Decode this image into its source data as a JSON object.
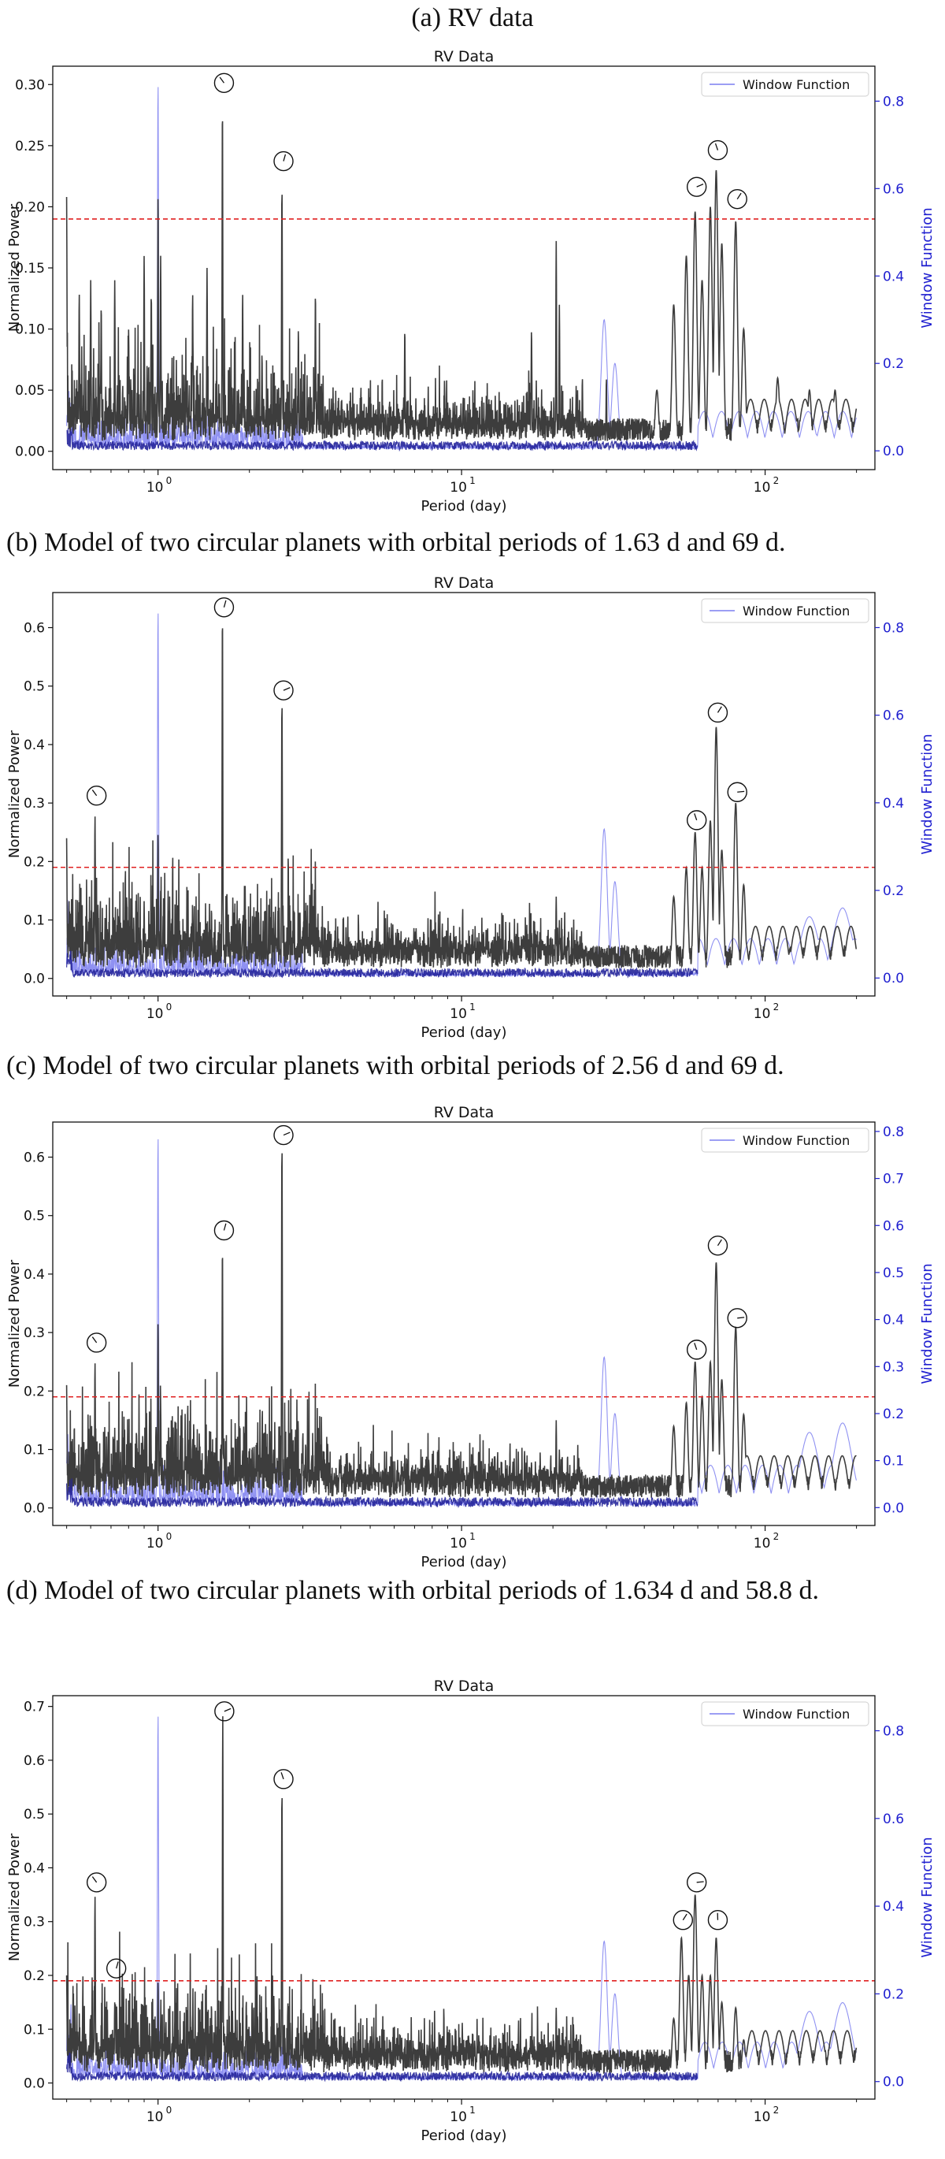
{
  "figure": {
    "captions": [
      "(a) RV data",
      "(b) Model of two circular planets with orbital periods of 1.63 d and 69 d.",
      "(c) Model of two circular planets with orbital periods of 2.56 d and 69 d.",
      "(d) Model of two circular planets with orbital periods of 1.634 d and 58.8 d."
    ]
  },
  "colors": {
    "power": "#3d3d3d",
    "window": "#7b7ef0",
    "window_dense": "#23239a",
    "threshold": "#e02020",
    "right_axis": "#1f1fd0"
  },
  "chart_data": [
    {
      "type": "line",
      "title": "RV Data",
      "xlabel": "Period (day)",
      "ylabel": "Normalized Power",
      "y2label": "Window Function",
      "legend": "Window Function",
      "legend_position": "top-right",
      "xscale": "log",
      "xlim": [
        0.45,
        230
      ],
      "ylim": [
        -0.015,
        0.315
      ],
      "y2lim": [
        -0.043,
        0.88
      ],
      "yticks": [
        "0.00",
        "0.05",
        "0.10",
        "0.15",
        "0.20",
        "0.25",
        "0.30"
      ],
      "y2ticks": [
        "0.0",
        "0.2",
        "0.4",
        "0.6",
        "0.8"
      ],
      "threshold": 0.19,
      "series": [
        {
          "name": "Normalized Power",
          "peaks": [
            [
              0.5,
              0.208
            ],
            [
              0.55,
              0.13
            ],
            [
              0.6,
              0.14
            ],
            [
              0.65,
              0.12
            ],
            [
              0.72,
              0.14
            ],
            [
              0.8,
              0.1
            ],
            [
              0.9,
              0.16
            ],
            [
              0.95,
              0.13
            ],
            [
              1.0,
              0.21
            ],
            [
              1.02,
              0.16
            ],
            [
              1.1,
              0.06
            ],
            [
              1.3,
              0.13
            ],
            [
              1.45,
              0.15
            ],
            [
              1.63,
              0.284
            ],
            [
              1.9,
              0.13
            ],
            [
              2.2,
              0.08
            ],
            [
              2.56,
              0.218
            ],
            [
              2.9,
              0.1
            ],
            [
              3.3,
              0.13
            ],
            [
              4.2,
              0.04
            ],
            [
              5.0,
              0.04
            ],
            [
              6.5,
              0.1
            ],
            [
              9.0,
              0.04
            ],
            [
              14.0,
              0.04
            ],
            [
              17.0,
              0.1
            ],
            [
              20.5,
              0.172
            ],
            [
              21.0,
              0.12
            ],
            [
              25.0,
              0.06
            ],
            [
              30.0,
              0.06
            ],
            [
              44.0,
              0.05
            ],
            [
              50.0,
              0.12
            ],
            [
              55.0,
              0.16
            ],
            [
              58.8,
              0.196
            ],
            [
              62.0,
              0.14
            ],
            [
              66.0,
              0.2
            ],
            [
              69.0,
              0.23
            ],
            [
              72.0,
              0.17
            ],
            [
              80.0,
              0.188
            ],
            [
              85.0,
              0.1
            ],
            [
              110.0,
              0.06
            ],
            [
              140.0,
              0.05
            ],
            [
              170.0,
              0.05
            ]
          ],
          "circles": [
            [
              1.63,
              0.3
            ],
            [
              2.56,
              0.236
            ],
            [
              58.8,
              0.215
            ],
            [
              69.0,
              0.245
            ],
            [
              80.0,
              0.205
            ]
          ]
        },
        {
          "name": "Window Function",
          "peaks": [
            [
              1.0,
              0.85
            ],
            [
              2.0,
              0.12
            ],
            [
              29.5,
              0.3
            ],
            [
              32.0,
              0.2
            ],
            [
              140.0,
              0.05
            ],
            [
              180.0,
              0.04
            ]
          ]
        }
      ]
    },
    {
      "type": "line",
      "title": "RV Data",
      "xlabel": "Period (day)",
      "ylabel": "Normalized Power",
      "y2label": "Window Function",
      "legend": "Window Function",
      "legend_position": "top-right",
      "xscale": "log",
      "xlim": [
        0.45,
        230
      ],
      "ylim": [
        -0.03,
        0.66
      ],
      "y2lim": [
        -0.041,
        0.88
      ],
      "yticks": [
        "0.0",
        "0.1",
        "0.2",
        "0.3",
        "0.4",
        "0.5",
        "0.6"
      ],
      "y2ticks": [
        "0.0",
        "0.2",
        "0.4",
        "0.6",
        "0.8"
      ],
      "threshold": 0.19,
      "series": [
        {
          "name": "Normalized Power",
          "peaks": [
            [
              0.5,
              0.24
            ],
            [
              0.62,
              0.28
            ],
            [
              0.72,
              0.1
            ],
            [
              0.9,
              0.12
            ],
            [
              1.0,
              0.25
            ],
            [
              1.02,
              0.15
            ],
            [
              1.3,
              0.12
            ],
            [
              1.5,
              0.12
            ],
            [
              1.63,
              0.63
            ],
            [
              1.9,
              0.1
            ],
            [
              2.56,
              0.48
            ],
            [
              3.0,
              0.08
            ],
            [
              4.0,
              0.05
            ],
            [
              6.5,
              0.07
            ],
            [
              10.0,
              0.04
            ],
            [
              17.0,
              0.08
            ],
            [
              20.5,
              0.14
            ],
            [
              21.0,
              0.1
            ],
            [
              50.0,
              0.14
            ],
            [
              55.0,
              0.19
            ],
            [
              58.8,
              0.25
            ],
            [
              62.0,
              0.19
            ],
            [
              66.0,
              0.27
            ],
            [
              69.0,
              0.43
            ],
            [
              72.0,
              0.22
            ],
            [
              80.0,
              0.3
            ],
            [
              85.0,
              0.16
            ],
            [
              110.0,
              0.04
            ],
            [
              180.0,
              0.04
            ]
          ],
          "circles": [
            [
              0.62,
              0.31
            ],
            [
              1.63,
              0.632
            ],
            [
              2.56,
              0.49
            ],
            [
              58.8,
              0.268
            ],
            [
              69.0,
              0.452
            ],
            [
              80.0,
              0.316
            ]
          ]
        },
        {
          "name": "Window Function",
          "peaks": [
            [
              1.0,
              0.85
            ],
            [
              2.0,
              0.12
            ],
            [
              29.5,
              0.34
            ],
            [
              32.0,
              0.22
            ],
            [
              140.0,
              0.14
            ],
            [
              180.0,
              0.16
            ]
          ]
        }
      ]
    },
    {
      "type": "line",
      "title": "RV Data",
      "xlabel": "Period (day)",
      "ylabel": "Normalized Power",
      "y2label": "Window Function",
      "legend": "Window Function",
      "legend_position": "top-right",
      "xscale": "log",
      "xlim": [
        0.45,
        230
      ],
      "ylim": [
        -0.03,
        0.66
      ],
      "y2lim": [
        -0.038,
        0.82
      ],
      "yticks": [
        "0.0",
        "0.1",
        "0.2",
        "0.3",
        "0.4",
        "0.5",
        "0.6"
      ],
      "y2ticks": [
        "0.0",
        "0.1",
        "0.2",
        "0.3",
        "0.4",
        "0.5",
        "0.6",
        "0.7",
        "0.8"
      ],
      "threshold": 0.19,
      "series": [
        {
          "name": "Normalized Power",
          "peaks": [
            [
              0.5,
              0.21
            ],
            [
              0.62,
              0.25
            ],
            [
              0.72,
              0.1
            ],
            [
              0.9,
              0.1
            ],
            [
              1.0,
              0.32
            ],
            [
              1.02,
              0.18
            ],
            [
              1.3,
              0.12
            ],
            [
              1.5,
              0.1
            ],
            [
              1.63,
              0.45
            ],
            [
              1.9,
              0.1
            ],
            [
              2.2,
              0.1
            ],
            [
              2.56,
              0.63
            ],
            [
              3.0,
              0.08
            ],
            [
              4.0,
              0.05
            ],
            [
              6.5,
              0.07
            ],
            [
              10.0,
              0.04
            ],
            [
              17.0,
              0.08
            ],
            [
              20.5,
              0.15
            ],
            [
              21.0,
              0.1
            ],
            [
              50.0,
              0.14
            ],
            [
              55.0,
              0.18
            ],
            [
              58.8,
              0.25
            ],
            [
              62.0,
              0.19
            ],
            [
              66.0,
              0.25
            ],
            [
              69.0,
              0.42
            ],
            [
              72.0,
              0.22
            ],
            [
              80.0,
              0.31
            ],
            [
              85.0,
              0.16
            ],
            [
              110.0,
              0.04
            ],
            [
              180.0,
              0.04
            ]
          ],
          "circles": [
            [
              0.62,
              0.28
            ],
            [
              1.63,
              0.472
            ],
            [
              2.56,
              0.635
            ],
            [
              58.8,
              0.268
            ],
            [
              69.0,
              0.446
            ],
            [
              80.0,
              0.322
            ]
          ]
        },
        {
          "name": "Window Function",
          "peaks": [
            [
              1.0,
              0.8
            ],
            [
              2.0,
              0.12
            ],
            [
              29.5,
              0.32
            ],
            [
              32.0,
              0.2
            ],
            [
              140.0,
              0.16
            ],
            [
              180.0,
              0.18
            ]
          ]
        }
      ]
    },
    {
      "type": "line",
      "title": "RV Data",
      "xlabel": "Period (day)",
      "ylabel": "Normalized Power",
      "y2label": "Window Function",
      "legend": "Window Function",
      "legend_position": "top-right",
      "xscale": "log",
      "xlim": [
        0.45,
        230
      ],
      "ylim": [
        -0.03,
        0.72
      ],
      "y2lim": [
        -0.04,
        0.88
      ],
      "yticks": [
        "0.0",
        "0.1",
        "0.2",
        "0.3",
        "0.4",
        "0.5",
        "0.6",
        "0.7"
      ],
      "y2ticks": [
        "0.0",
        "0.2",
        "0.4",
        "0.6",
        "0.8"
      ],
      "threshold": 0.19,
      "series": [
        {
          "name": "Normalized Power",
          "peaks": [
            [
              0.5,
              0.2
            ],
            [
              0.62,
              0.35
            ],
            [
              0.72,
              0.15
            ],
            [
              0.9,
              0.12
            ],
            [
              1.0,
              0.19
            ],
            [
              1.02,
              0.12
            ],
            [
              1.3,
              0.12
            ],
            [
              1.5,
              0.1
            ],
            [
              1.634,
              0.685
            ],
            [
              1.9,
              0.1
            ],
            [
              2.56,
              0.55
            ],
            [
              3.0,
              0.07
            ],
            [
              4.0,
              0.05
            ],
            [
              6.5,
              0.07
            ],
            [
              10.0,
              0.04
            ],
            [
              17.0,
              0.08
            ],
            [
              20.5,
              0.14
            ],
            [
              21.0,
              0.1
            ],
            [
              50.0,
              0.12
            ],
            [
              53.0,
              0.27
            ],
            [
              56.0,
              0.2
            ],
            [
              58.8,
              0.35
            ],
            [
              62.0,
              0.2
            ],
            [
              66.0,
              0.2
            ],
            [
              69.0,
              0.27
            ],
            [
              72.0,
              0.15
            ],
            [
              80.0,
              0.14
            ],
            [
              85.0,
              0.08
            ],
            [
              110.0,
              0.04
            ],
            [
              180.0,
              0.04
            ]
          ],
          "circles": [
            [
              0.62,
              0.37
            ],
            [
              0.72,
              0.21
            ],
            [
              1.634,
              0.688
            ],
            [
              2.56,
              0.562
            ],
            [
              53.0,
              0.3
            ],
            [
              58.8,
              0.37
            ],
            [
              69.0,
              0.3
            ]
          ]
        },
        {
          "name": "Window Function",
          "peaks": [
            [
              1.0,
              0.85
            ],
            [
              2.0,
              0.12
            ],
            [
              29.5,
              0.32
            ],
            [
              32.0,
              0.2
            ],
            [
              140.0,
              0.16
            ],
            [
              180.0,
              0.18
            ]
          ]
        }
      ]
    }
  ]
}
